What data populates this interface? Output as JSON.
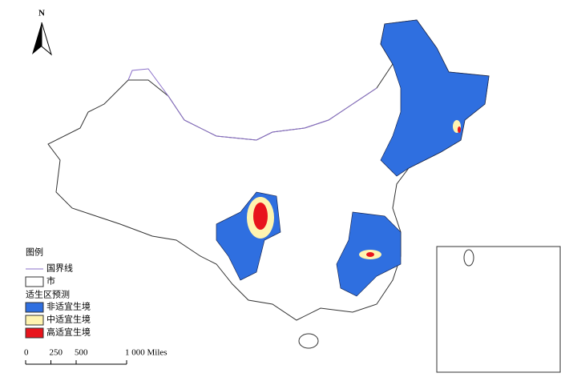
{
  "north_arrow": {
    "label": "N"
  },
  "legend": {
    "title": "图例",
    "items": [
      "国界线",
      "市"
    ],
    "prediction_title": "适生区预测",
    "classes": [
      {
        "label": "非适宜生境",
        "color": "#2f6fe0"
      },
      {
        "label": "中适宜生境",
        "color": "#fff4b0"
      },
      {
        "label": "高适宜生境",
        "color": "#e8141c"
      }
    ]
  },
  "scale_bar": {
    "ticks": [
      0,
      250,
      500,
      {
        "value": 1000,
        "label": "1 000 Miles"
      }
    ]
  }
}
